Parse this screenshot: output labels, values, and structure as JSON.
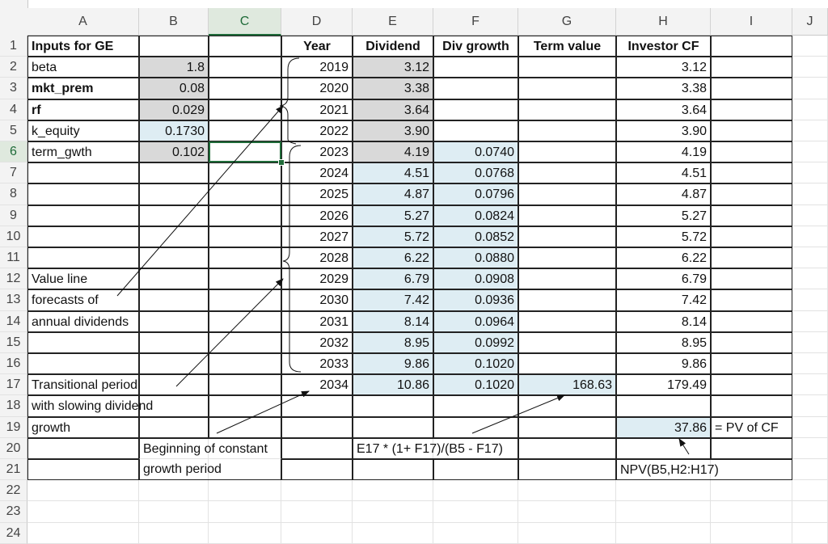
{
  "columns": [
    "A",
    "B",
    "C",
    "D",
    "E",
    "F",
    "G",
    "H",
    "I",
    "J"
  ],
  "rows": [
    "1",
    "2",
    "3",
    "4",
    "5",
    "6",
    "7",
    "8",
    "9",
    "10",
    "11",
    "12",
    "13",
    "14",
    "15",
    "16",
    "17",
    "18",
    "19",
    "20",
    "21",
    "22",
    "23",
    "24"
  ],
  "headers": {
    "inputs_title": "Inputs for GE",
    "year": "Year",
    "dividend": "Dividend",
    "div_growth": "Div growth",
    "term_value": "Term value",
    "investor_cf": "Investor CF"
  },
  "inputs": [
    {
      "label": "beta",
      "value": "1.8"
    },
    {
      "label": "mkt_prem",
      "value": "0.08"
    },
    {
      "label": "rf",
      "value": "0.029"
    },
    {
      "label": "k_equity",
      "value": "0.1730"
    },
    {
      "label": "term_gwth",
      "value": "0.102"
    }
  ],
  "table": [
    {
      "year": "2019",
      "dividend": "3.12",
      "growth": "",
      "term": "",
      "cf": "3.12"
    },
    {
      "year": "2020",
      "dividend": "3.38",
      "growth": "",
      "term": "",
      "cf": "3.38"
    },
    {
      "year": "2021",
      "dividend": "3.64",
      "growth": "",
      "term": "",
      "cf": "3.64"
    },
    {
      "year": "2022",
      "dividend": "3.90",
      "growth": "",
      "term": "",
      "cf": "3.90"
    },
    {
      "year": "2023",
      "dividend": "4.19",
      "growth": "0.0740",
      "term": "",
      "cf": "4.19"
    },
    {
      "year": "2024",
      "dividend": "4.51",
      "growth": "0.0768",
      "term": "",
      "cf": "4.51"
    },
    {
      "year": "2025",
      "dividend": "4.87",
      "growth": "0.0796",
      "term": "",
      "cf": "4.87"
    },
    {
      "year": "2026",
      "dividend": "5.27",
      "growth": "0.0824",
      "term": "",
      "cf": "5.27"
    },
    {
      "year": "2027",
      "dividend": "5.72",
      "growth": "0.0852",
      "term": "",
      "cf": "5.72"
    },
    {
      "year": "2028",
      "dividend": "6.22",
      "growth": "0.0880",
      "term": "",
      "cf": "6.22"
    },
    {
      "year": "2029",
      "dividend": "6.79",
      "growth": "0.0908",
      "term": "",
      "cf": "6.79"
    },
    {
      "year": "2030",
      "dividend": "7.42",
      "growth": "0.0936",
      "term": "",
      "cf": "7.42"
    },
    {
      "year": "2031",
      "dividend": "8.14",
      "growth": "0.0964",
      "term": "",
      "cf": "8.14"
    },
    {
      "year": "2032",
      "dividend": "8.95",
      "growth": "0.0992",
      "term": "",
      "cf": "8.95"
    },
    {
      "year": "2033",
      "dividend": "9.86",
      "growth": "0.1020",
      "term": "",
      "cf": "9.86"
    },
    {
      "year": "2034",
      "dividend": "10.86",
      "growth": "0.1020",
      "term": "168.63",
      "cf": "179.49"
    }
  ],
  "notes": {
    "value_line": [
      "Value line",
      "forecasts of",
      "annual dividends"
    ],
    "transitional": [
      "Transitional period",
      "with slowing dividend",
      "growth"
    ],
    "beginning": [
      "Beginning of constant",
      "growth period"
    ],
    "term_formula": "E17 * (1+ F17)/(B5 - F17)",
    "npv_formula": "NPV(B5,H2:H17)",
    "pv_value": "37.86",
    "pv_label": "= PV of CF"
  },
  "colors": {
    "input_gray": "#d9d9d9",
    "calc_blue": "#deedf3",
    "selection_green": "#1f6b39"
  }
}
